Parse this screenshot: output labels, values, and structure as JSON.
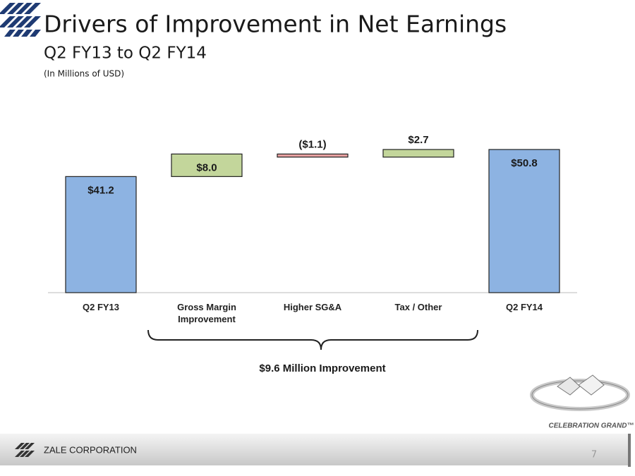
{
  "slide": {
    "title": "Drivers of Improvement in Net Earnings",
    "subtitle": "Q2 FY13 to Q2 FY14",
    "note": "(In Millions of USD)"
  },
  "chart_data": {
    "type": "waterfall",
    "categories": [
      "Q2 FY13",
      "Gross Margin Improvement",
      "Higher SG&A",
      "Tax / Other",
      "Q2 FY14"
    ],
    "values": [
      41.2,
      8.0,
      -1.1,
      2.7,
      50.8
    ],
    "value_labels": [
      "$41.2",
      "$8.0",
      "($1.1)",
      "$2.7",
      "$50.8"
    ],
    "colors": [
      "#8db3e2",
      "#c3d69b",
      "#e6a0a0",
      "#c3d69b",
      "#8db3e2"
    ],
    "annotation": "$9.6 Million Improvement"
  },
  "footer": {
    "company": "ZALE CORPORATION",
    "page": "7",
    "brand": "CELEBRATION GRAND™"
  }
}
